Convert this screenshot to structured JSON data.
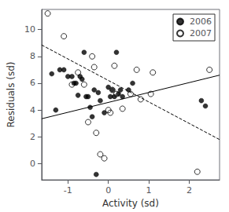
{
  "chart_data": {
    "type": "scatter",
    "xlabel": "Activity (sd)",
    "ylabel": "Residuals (sd)",
    "xlim": [
      -1.65,
      2.75
    ],
    "ylim": [
      -1.2,
      11.5
    ],
    "xticks": [
      -1,
      0,
      1,
      2
    ],
    "yticks": [
      0,
      2,
      4,
      6,
      8,
      10
    ],
    "grid": false,
    "legend": "upper right",
    "series": [
      {
        "name": "2006",
        "type": "scatter",
        "color": "black",
        "marker": "circle",
        "x": [
          -1.4,
          -1.3,
          -1.2,
          -1.1,
          -1.0,
          -0.9,
          -0.85,
          -0.8,
          -0.75,
          -0.7,
          -0.65,
          -0.6,
          -0.55,
          -0.5,
          -0.45,
          -0.4,
          -0.35,
          -0.3,
          -0.25,
          -0.2,
          -0.1,
          0.0,
          0.05,
          0.1,
          0.15,
          0.2,
          0.25,
          0.3,
          0.35,
          0.5,
          0.6,
          2.3,
          2.4
        ],
        "values": [
          6.7,
          4.0,
          7.0,
          7.0,
          6.5,
          6.5,
          6.0,
          6.0,
          5.1,
          6.5,
          6.3,
          8.3,
          5.0,
          5.0,
          4.2,
          3.5,
          5.5,
          -0.8,
          5.3,
          4.7,
          3.8,
          5.7,
          5.0,
          5.5,
          5.0,
          8.3,
          5.2,
          5.5,
          5.0,
          5.5,
          6.0,
          4.7,
          4.3
        ]
      },
      {
        "name": "2007",
        "type": "scatter",
        "color": "black",
        "marker": "open_circle",
        "x": [
          -1.5,
          -1.1,
          -0.9,
          -0.75,
          -0.6,
          -0.5,
          -0.4,
          -0.35,
          -0.3,
          -0.2,
          -0.1,
          0.0,
          0.05,
          0.1,
          0.15,
          0.2,
          0.35,
          0.55,
          0.7,
          0.8,
          1.05,
          1.1,
          2.2,
          2.5
        ],
        "values": [
          11.2,
          9.5,
          5.9,
          6.8,
          5.9,
          3.1,
          8.0,
          7.2,
          2.3,
          0.7,
          0.4,
          4.0,
          3.8,
          5.5,
          7.3,
          5.2,
          4.1,
          5.2,
          7.0,
          4.8,
          5.2,
          6.8,
          -0.6,
          7.0
        ]
      },
      {
        "type": "line",
        "color": "black",
        "line_style": "solid",
        "x": [
          -1.65,
          2.75
        ],
        "values": [
          3.35,
          6.6
        ]
      },
      {
        "type": "line",
        "color": "black",
        "line_style": "dashed",
        "x": [
          -1.65,
          2.75
        ],
        "values": [
          8.85,
          1.8
        ]
      }
    ]
  }
}
